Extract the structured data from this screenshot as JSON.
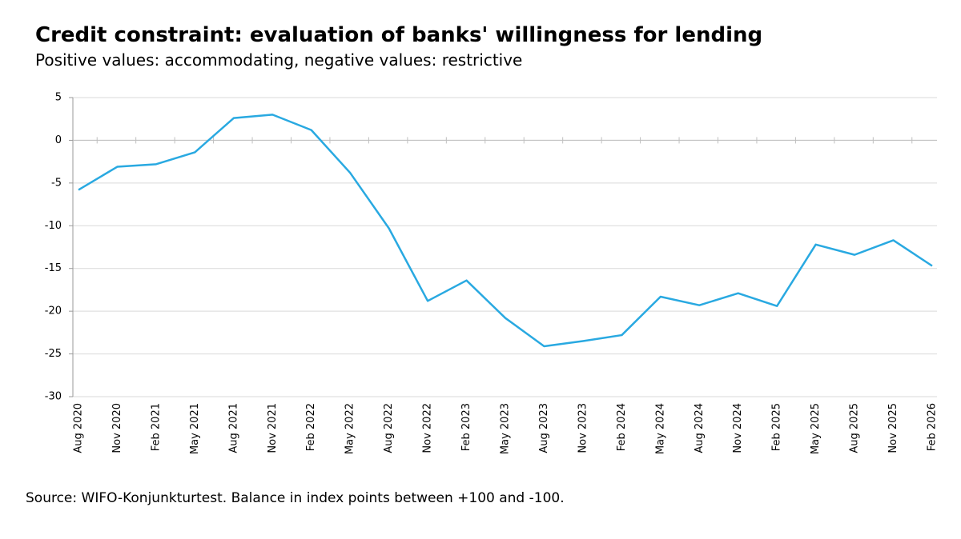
{
  "chart_data": {
    "type": "line",
    "title": "Credit constraint: evaluation of banks' willingness for lending",
    "subtitle": "Positive values: accommodating, negative values: restrictive",
    "source": "Source: WIFO-Konjunkturtest. Balance in index points between +100 and -100.",
    "categories": [
      "Aug 2020",
      "Nov 2020",
      "Feb 2021",
      "May 2021",
      "Aug 2021",
      "Nov 2021",
      "Feb 2022",
      "May 2022",
      "Aug 2022",
      "Nov 2022",
      "Feb 2023",
      "May 2023",
      "Aug 2023",
      "Nov 2023",
      "Feb 2024",
      "May 2024",
      "Aug 2024",
      "Nov 2024",
      "Feb 2025",
      "May 2025",
      "Aug 2025",
      "Nov 2025",
      "Feb 2026"
    ],
    "series": [
      {
        "color": "#29a9e1",
        "values": [
          -5.8,
          -3.1,
          -2.8,
          -1.4,
          2.6,
          3.0,
          1.2,
          -3.8,
          -10.3,
          -18.8,
          -16.4,
          -20.8,
          -24.1,
          -23.5,
          -22.8,
          -18.3,
          -19.3,
          -17.9,
          -19.4,
          -12.2,
          -13.4,
          -11.7,
          -14.7
        ]
      }
    ],
    "ylim": [
      -30,
      5
    ],
    "yticks": [
      -30,
      -25,
      -20,
      -15,
      -10,
      -5,
      0,
      5
    ],
    "grid": true
  }
}
